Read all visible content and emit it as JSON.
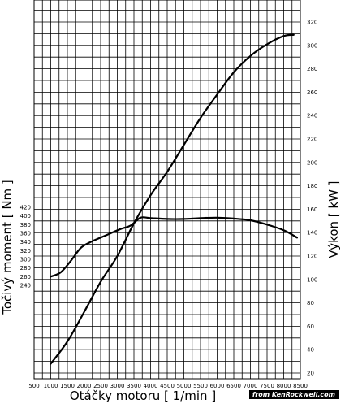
{
  "chart_data": {
    "type": "line",
    "xlabel": "Otáčky motoru [ 1/min ]",
    "ylabel_left": "Točivý moment [ Nm ]",
    "ylabel_right": "Výkon [ kW ]",
    "x_ticks": [
      500,
      1000,
      1500,
      2000,
      2500,
      3000,
      3500,
      4000,
      4500,
      5000,
      5500,
      6000,
      6500,
      7000,
      7500,
      8000,
      8500
    ],
    "xlim": [
      500,
      8500
    ],
    "left_ticks": [
      240,
      260,
      280,
      300,
      320,
      340,
      360,
      380,
      400,
      420
    ],
    "right_ticks": [
      20,
      40,
      60,
      80,
      100,
      120,
      140,
      160,
      180,
      200,
      220,
      240,
      260,
      280,
      300,
      320
    ],
    "right_lim": [
      20,
      320
    ],
    "grid": true,
    "series": [
      {
        "axis": "left",
        "points": [
          [
            1000,
            260
          ],
          [
            1300,
            270
          ],
          [
            1600,
            296
          ],
          [
            1900,
            326
          ],
          [
            2200,
            340
          ],
          [
            2500,
            350
          ],
          [
            2800,
            360
          ],
          [
            3100,
            370
          ],
          [
            3400,
            378
          ],
          [
            3700,
            396
          ],
          [
            4000,
            395
          ],
          [
            4500,
            393
          ],
          [
            5000,
            393
          ],
          [
            5500,
            395
          ],
          [
            6000,
            396
          ],
          [
            6500,
            394
          ],
          [
            7000,
            390
          ],
          [
            7500,
            380
          ],
          [
            8000,
            367
          ],
          [
            8400,
            350
          ]
        ]
      },
      {
        "axis": "right",
        "points": [
          [
            1000,
            28
          ],
          [
            1500,
            47
          ],
          [
            2000,
            72
          ],
          [
            2500,
            98
          ],
          [
            3000,
            120
          ],
          [
            3500,
            148
          ],
          [
            4000,
            172
          ],
          [
            4500,
            192
          ],
          [
            5000,
            215
          ],
          [
            5500,
            238
          ],
          [
            6000,
            258
          ],
          [
            6500,
            277
          ],
          [
            7000,
            291
          ],
          [
            7500,
            301
          ],
          [
            8000,
            308
          ],
          [
            8300,
            309
          ]
        ]
      }
    ]
  },
  "watermark": "from KenRockwell.com"
}
